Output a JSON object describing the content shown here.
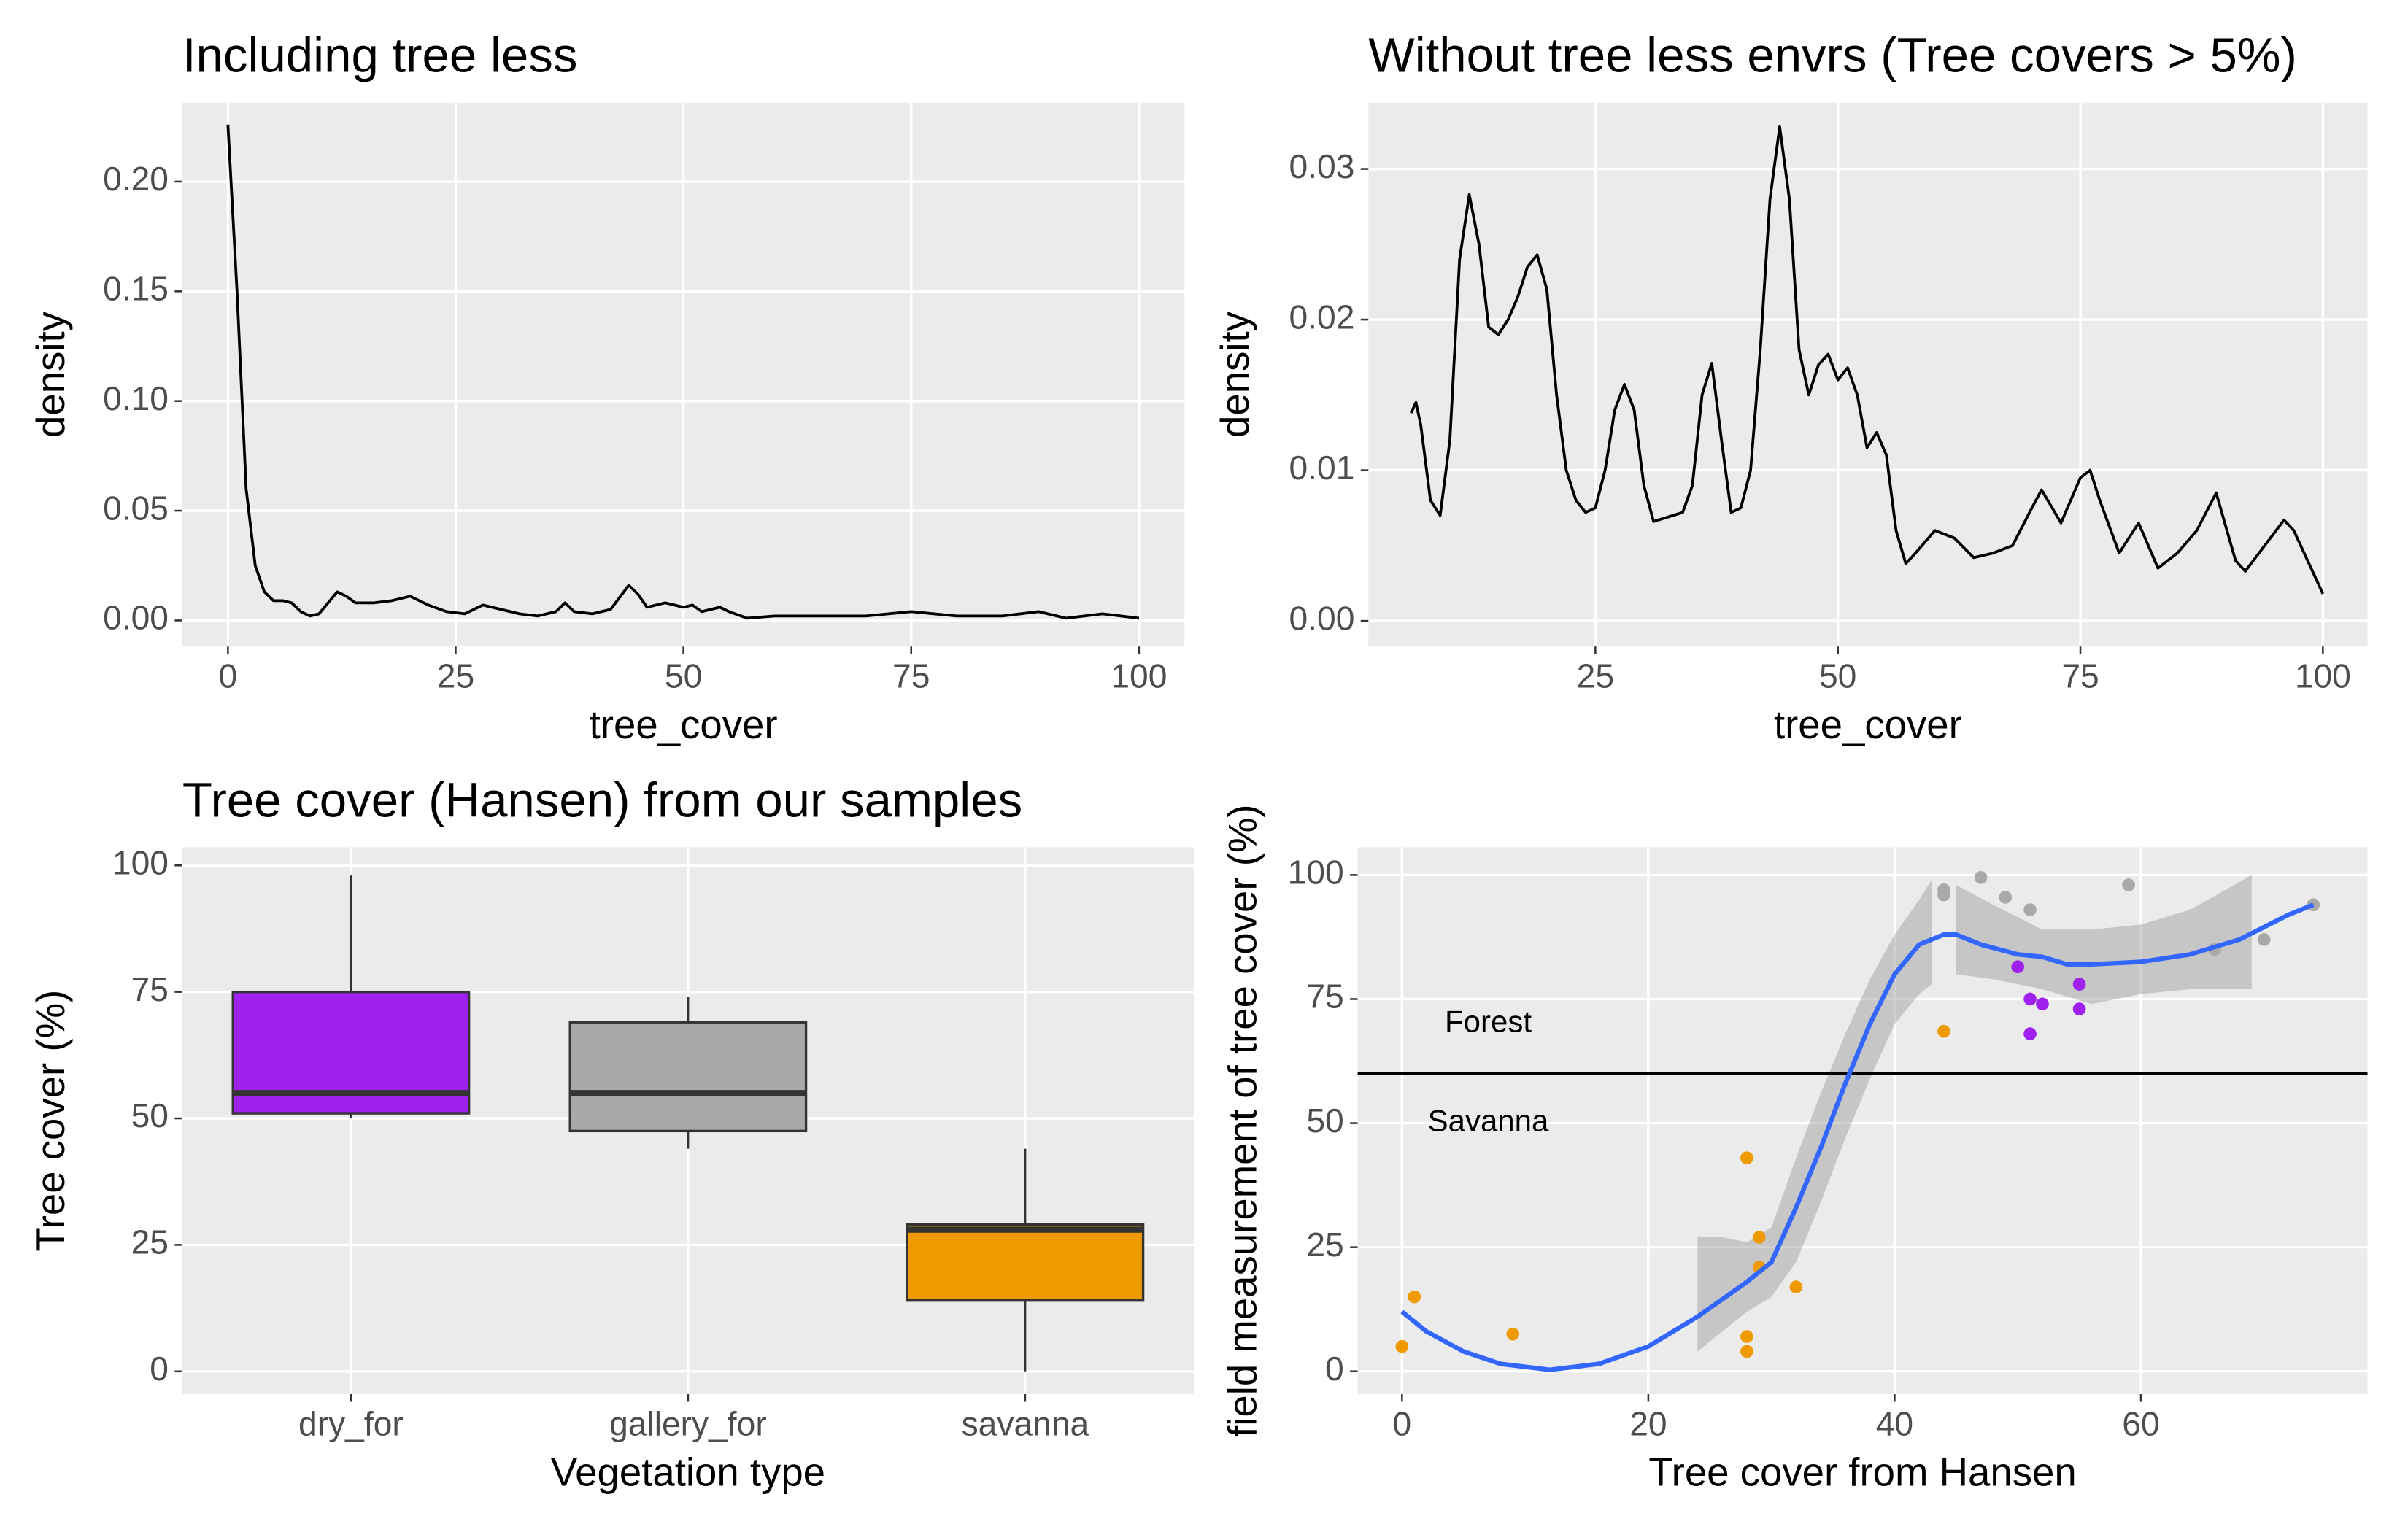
{
  "chart_data": [
    {
      "type": "line",
      "title": "Including tree less",
      "xlabel": "tree_cover",
      "ylabel": "density",
      "color": "#000000",
      "xlim": [
        -5,
        105
      ],
      "ylim": [
        -0.0119,
        0.236
      ],
      "xticks": [
        0,
        25,
        50,
        75,
        100
      ],
      "yticks": [
        {
          "value": 0,
          "label": "0.00"
        },
        {
          "value": 0.05,
          "label": "0.05"
        },
        {
          "value": 0.1,
          "label": "0.10"
        },
        {
          "value": 0.15,
          "label": "0.15"
        },
        {
          "value": 0.2,
          "label": "0.20"
        }
      ],
      "grid": true,
      "x": [
        0,
        1,
        2,
        3,
        4,
        5,
        6,
        7,
        8,
        9,
        10,
        11,
        12,
        13,
        14,
        16,
        18,
        20,
        22,
        24,
        26,
        28,
        30,
        32,
        34,
        36,
        37,
        38,
        40,
        42,
        44,
        45,
        46,
        48,
        50,
        51,
        52,
        54,
        55,
        57,
        60,
        65,
        70,
        75,
        80,
        85,
        89,
        92,
        96,
        100
      ],
      "y": [
        0.226,
        0.15,
        0.06,
        0.025,
        0.013,
        0.009,
        0.009,
        0.008,
        0.004,
        0.002,
        0.003,
        0.008,
        0.013,
        0.011,
        0.008,
        0.008,
        0.009,
        0.011,
        0.007,
        0.004,
        0.003,
        0.007,
        0.005,
        0.003,
        0.002,
        0.004,
        0.008,
        0.004,
        0.003,
        0.005,
        0.016,
        0.012,
        0.006,
        0.008,
        0.006,
        0.007,
        0.004,
        0.006,
        0.004,
        0.001,
        0.002,
        0.002,
        0.002,
        0.004,
        0.002,
        0.002,
        0.004,
        0.001,
        0.003,
        0.001
      ]
    },
    {
      "type": "line",
      "title": "Without tree less envrs (Tree covers > 5%)",
      "xlabel": "tree_cover",
      "ylabel": "density",
      "color": "#000000",
      "xlim": [
        1.6,
        104.6
      ],
      "ylim": [
        -0.0017,
        0.0344
      ],
      "xticks": [
        25,
        50,
        75,
        100
      ],
      "yticks": [
        {
          "value": 0,
          "label": "0.00"
        },
        {
          "value": 0.01,
          "label": "0.01"
        },
        {
          "value": 0.02,
          "label": "0.02"
        },
        {
          "value": 0.03,
          "label": "0.03"
        }
      ],
      "grid": true,
      "x": [
        6,
        6.5,
        7,
        8,
        9,
        10,
        11,
        12,
        13,
        14,
        15,
        16,
        17,
        18,
        19,
        20,
        21,
        22,
        23,
        24,
        25,
        26,
        27,
        28,
        29,
        30,
        31,
        32,
        34,
        35,
        36,
        37,
        38,
        39,
        40,
        41,
        42,
        43,
        44,
        45,
        46,
        47,
        48,
        49,
        50,
        51,
        52,
        53,
        54,
        55,
        56,
        57,
        58,
        60,
        62,
        64,
        66,
        68,
        70,
        71,
        73,
        74,
        75,
        76,
        77,
        79,
        80,
        81,
        83,
        85,
        87,
        89,
        91,
        92,
        94,
        96,
        97,
        100
      ],
      "y": [
        0.0138,
        0.0145,
        0.013,
        0.008,
        0.007,
        0.012,
        0.024,
        0.0283,
        0.025,
        0.0195,
        0.019,
        0.02,
        0.0215,
        0.0235,
        0.0243,
        0.022,
        0.015,
        0.01,
        0.008,
        0.0072,
        0.0075,
        0.01,
        0.014,
        0.0157,
        0.014,
        0.009,
        0.0066,
        0.0068,
        0.0072,
        0.009,
        0.015,
        0.0171,
        0.012,
        0.0072,
        0.0075,
        0.01,
        0.018,
        0.028,
        0.0328,
        0.028,
        0.018,
        0.015,
        0.017,
        0.0177,
        0.016,
        0.0168,
        0.015,
        0.0115,
        0.0125,
        0.011,
        0.006,
        0.0038,
        0.0045,
        0.006,
        0.0055,
        0.0042,
        0.0045,
        0.005,
        0.0075,
        0.0087,
        0.0065,
        0.008,
        0.0095,
        0.01,
        0.008,
        0.0045,
        0.0055,
        0.0065,
        0.0035,
        0.0045,
        0.006,
        0.0085,
        0.004,
        0.0033,
        0.005,
        0.0067,
        0.006,
        0.0018
      ]
    },
    {
      "type": "box",
      "title": "Tree cover (Hansen) from our samples",
      "xlabel": "Vegetation type",
      "ylabel": "Tree cover (%)",
      "categories": [
        "dry_for",
        "gallery_for",
        "savanna"
      ],
      "ylim": [
        -4.5,
        103.6
      ],
      "yticks": [
        0,
        25,
        50,
        75,
        100
      ],
      "grid": true,
      "boxes": [
        {
          "min": 50,
          "q1": 51,
          "median": 55,
          "q3": 75,
          "max": 98,
          "color": "#A020F0"
        },
        {
          "min": 44,
          "q1": 47.5,
          "median": 55,
          "q3": 69,
          "max": 74,
          "color": "#A9A9A9"
        },
        {
          "min": 0,
          "q1": 14,
          "median": 28,
          "q3": 29,
          "max": 44,
          "color": "#EE9A00"
        }
      ]
    },
    {
      "type": "scatter",
      "xlabel": "Tree cover from Hansen",
      "ylabel": "field measurement of tree cover (%)",
      "xlim": [
        -3.6,
        78.4
      ],
      "ylim": [
        -4.6,
        105.6
      ],
      "xticks": [
        0,
        20,
        40,
        60
      ],
      "yticks": [
        0,
        25,
        50,
        75,
        100
      ],
      "grid": true,
      "groups": [
        {
          "color": "#EE9A00",
          "x": [
            0,
            1,
            9,
            28,
            28,
            28,
            29,
            29,
            32,
            44
          ],
          "y": [
            5,
            15,
            7.5,
            43,
            7,
            4,
            27,
            21,
            17,
            68.5
          ]
        },
        {
          "color": "#A9A9A9",
          "x": [
            44,
            44,
            47,
            49,
            51,
            59,
            66,
            70,
            74
          ],
          "y": [
            97,
            96,
            99.5,
            95.5,
            93,
            98,
            85,
            87,
            94
          ]
        },
        {
          "color": "#A020F0",
          "x": [
            50,
            51,
            51,
            52,
            55,
            55
          ],
          "y": [
            81.5,
            75,
            68,
            74,
            78,
            73
          ]
        }
      ],
      "ribbons": [
        {
          "color": "#999999",
          "x": [
            24,
            26,
            28,
            30,
            32,
            34,
            36,
            38,
            40,
            42,
            43
          ],
          "low": [
            4,
            8,
            12,
            15,
            22,
            34,
            47,
            59,
            70,
            76,
            78
          ],
          "high": [
            27,
            27,
            26,
            29,
            43,
            56,
            68,
            79,
            88,
            95,
            99
          ]
        },
        {
          "color": "#999999",
          "x": [
            45,
            48,
            52,
            56,
            60,
            64,
            69
          ],
          "low": [
            80,
            79,
            77,
            74,
            76,
            77,
            77
          ],
          "high": [
            98,
            94,
            89,
            89,
            90,
            93,
            100
          ]
        }
      ],
      "smooth": {
        "color": "#3366FF",
        "x": [
          0,
          2,
          5,
          8,
          12,
          16,
          20,
          24,
          28,
          30,
          32,
          34,
          36,
          38,
          40,
          42,
          44,
          45,
          47,
          50,
          52,
          54,
          56,
          60,
          64,
          68,
          72,
          74
        ],
        "y": [
          12,
          8,
          4,
          1.5,
          0.3,
          1.5,
          5,
          11,
          18,
          22,
          33,
          45,
          58,
          70,
          80,
          86,
          88,
          88,
          86,
          84,
          83.5,
          82,
          82,
          82.5,
          84,
          87,
          92,
          94
        ]
      },
      "hline": 60,
      "annotations": [
        {
          "text": "Forest",
          "x": 7,
          "y": 70
        },
        {
          "text": "Savanna",
          "x": 7,
          "y": 50
        }
      ]
    }
  ]
}
